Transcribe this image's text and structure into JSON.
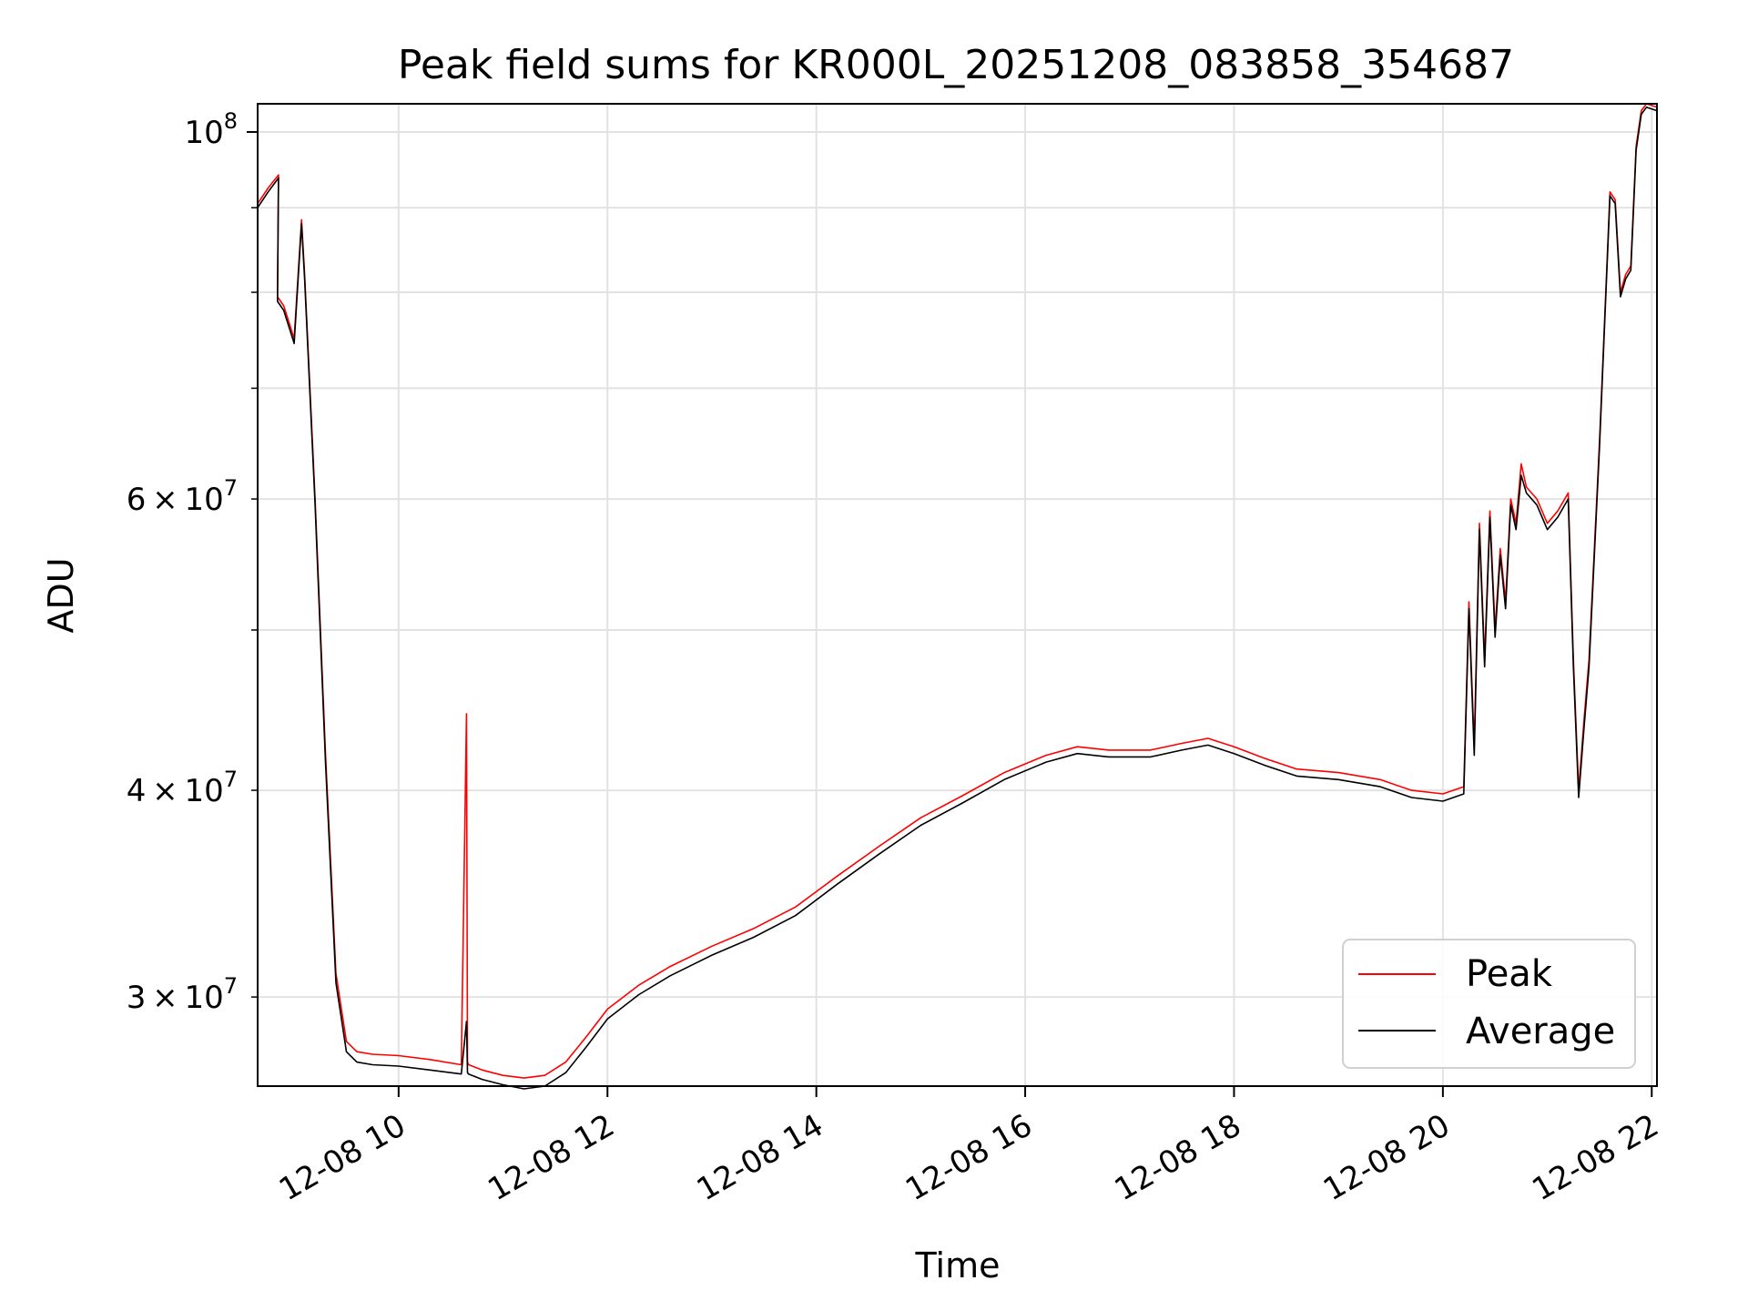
{
  "chart_data": {
    "type": "line",
    "title": "Peak field sums for KR000L_20251208_083858_354687",
    "xlabel": "Time",
    "ylabel": "ADU",
    "yscale": "log",
    "xlim": [
      8.65,
      22.05
    ],
    "ylim": [
      26500000,
      104000000
    ],
    "grid": true,
    "legend_position": "lower-right",
    "x_ticks": [
      {
        "value": 10,
        "label": "12-08 10"
      },
      {
        "value": 12,
        "label": "12-08 12"
      },
      {
        "value": 14,
        "label": "12-08 14"
      },
      {
        "value": 16,
        "label": "12-08 16"
      },
      {
        "value": 18,
        "label": "12-08 18"
      },
      {
        "value": 20,
        "label": "12-08 20"
      },
      {
        "value": 22,
        "label": "12-08 22"
      }
    ],
    "y_major_ticks": [
      {
        "value": 100000000,
        "mantissa": "",
        "exp": "8",
        "label": "10^8"
      }
    ],
    "y_minor_ticks": [
      {
        "value": 30000000,
        "mantissa": "3",
        "exp": "7",
        "label": "3×10^7"
      },
      {
        "value": 40000000,
        "mantissa": "4",
        "exp": "7",
        "label": "4×10^7"
      },
      {
        "value": 50000000,
        "mantissa": "",
        "exp": "",
        "label": ""
      },
      {
        "value": 60000000,
        "mantissa": "6",
        "exp": "7",
        "label": "6×10^7"
      },
      {
        "value": 70000000,
        "mantissa": "",
        "exp": "",
        "label": ""
      },
      {
        "value": 80000000,
        "mantissa": "",
        "exp": "",
        "label": ""
      },
      {
        "value": 90000000,
        "mantissa": "",
        "exp": "",
        "label": ""
      }
    ],
    "series": [
      {
        "name": "Peak",
        "color": "#ff0000",
        "x": [
          8.65,
          8.75,
          8.85,
          8.84,
          8.9,
          9.0,
          9.07,
          9.1,
          9.2,
          9.3,
          9.4,
          9.5,
          9.6,
          9.75,
          10.0,
          10.3,
          10.6,
          10.65,
          10.66,
          10.67,
          10.8,
          11.0,
          11.2,
          11.4,
          11.6,
          11.8,
          12.0,
          12.3,
          12.6,
          13.0,
          13.4,
          13.8,
          14.2,
          14.6,
          15.0,
          15.4,
          15.8,
          16.2,
          16.5,
          16.8,
          17.2,
          17.5,
          17.75,
          18.0,
          18.3,
          18.6,
          19.0,
          19.4,
          19.7,
          20.0,
          20.2,
          20.25,
          20.3,
          20.35,
          20.4,
          20.45,
          20.5,
          20.55,
          20.6,
          20.65,
          20.7,
          20.75,
          20.8,
          20.9,
          21.0,
          21.1,
          21.2,
          21.25,
          21.3,
          21.35,
          21.4,
          21.5,
          21.6,
          21.65,
          21.7,
          21.75,
          21.8,
          21.85,
          21.9,
          21.95,
          22.05
        ],
        "y": [
          90500000,
          92500000,
          94200000,
          79500000,
          78500000,
          75000000,
          88500000,
          82000000,
          60000000,
          42000000,
          31000000,
          28200000,
          27800000,
          27700000,
          27650000,
          27500000,
          27300000,
          44500000,
          27400000,
          27300000,
          27100000,
          26900000,
          26800000,
          26900000,
          27400000,
          28400000,
          29500000,
          30500000,
          31300000,
          32200000,
          33000000,
          34000000,
          35500000,
          37000000,
          38500000,
          39700000,
          41000000,
          42000000,
          42500000,
          42300000,
          42300000,
          42700000,
          43000000,
          42500000,
          41800000,
          41200000,
          41000000,
          40600000,
          40000000,
          39800000,
          40200000,
          52000000,
          42500000,
          58000000,
          48000000,
          59000000,
          50000000,
          56000000,
          52000000,
          60000000,
          58000000,
          63000000,
          61000000,
          60000000,
          58000000,
          59000000,
          60500000,
          48000000,
          40000000,
          44000000,
          48000000,
          65000000,
          92000000,
          91000000,
          80000000,
          82000000,
          83000000,
          98000000,
          103000000,
          104000000,
          103500000
        ]
      },
      {
        "name": "Average",
        "color": "#000000",
        "x": [
          8.65,
          8.75,
          8.85,
          8.84,
          8.9,
          9.0,
          9.07,
          9.1,
          9.2,
          9.3,
          9.4,
          9.5,
          9.6,
          9.75,
          10.0,
          10.3,
          10.6,
          10.65,
          10.66,
          10.67,
          10.8,
          11.0,
          11.2,
          11.4,
          11.6,
          11.8,
          12.0,
          12.3,
          12.6,
          13.0,
          13.4,
          13.8,
          14.2,
          14.6,
          15.0,
          15.4,
          15.8,
          16.2,
          16.5,
          16.8,
          17.2,
          17.5,
          17.75,
          18.0,
          18.3,
          18.6,
          19.0,
          19.4,
          19.7,
          20.0,
          20.2,
          20.25,
          20.3,
          20.35,
          20.4,
          20.45,
          20.5,
          20.55,
          20.6,
          20.65,
          20.7,
          20.75,
          20.8,
          20.9,
          21.0,
          21.1,
          21.2,
          21.25,
          21.3,
          21.35,
          21.4,
          21.5,
          21.6,
          21.65,
          21.7,
          21.75,
          21.8,
          21.85,
          21.9,
          21.95,
          22.05
        ],
        "y": [
          90000000,
          92000000,
          93800000,
          79000000,
          78000000,
          74500000,
          88000000,
          81500000,
          59500000,
          41500000,
          30600000,
          27800000,
          27400000,
          27300000,
          27250000,
          27100000,
          26950000,
          29000000,
          27000000,
          26950000,
          26750000,
          26550000,
          26400000,
          26500000,
          27000000,
          28000000,
          29100000,
          30100000,
          30900000,
          31800000,
          32600000,
          33600000,
          35100000,
          36600000,
          38100000,
          39300000,
          40600000,
          41600000,
          42100000,
          41900000,
          41900000,
          42300000,
          42600000,
          42100000,
          41400000,
          40800000,
          40600000,
          40200000,
          39600000,
          39400000,
          39800000,
          51500000,
          42000000,
          57500000,
          47500000,
          58500000,
          49500000,
          55500000,
          51500000,
          59500000,
          57500000,
          62000000,
          60500000,
          59500000,
          57500000,
          58500000,
          60000000,
          47500000,
          39600000,
          43500000,
          47500000,
          64500000,
          91500000,
          90500000,
          79500000,
          81500000,
          82500000,
          97500000,
          102500000,
          103500000,
          103000000
        ]
      }
    ]
  }
}
